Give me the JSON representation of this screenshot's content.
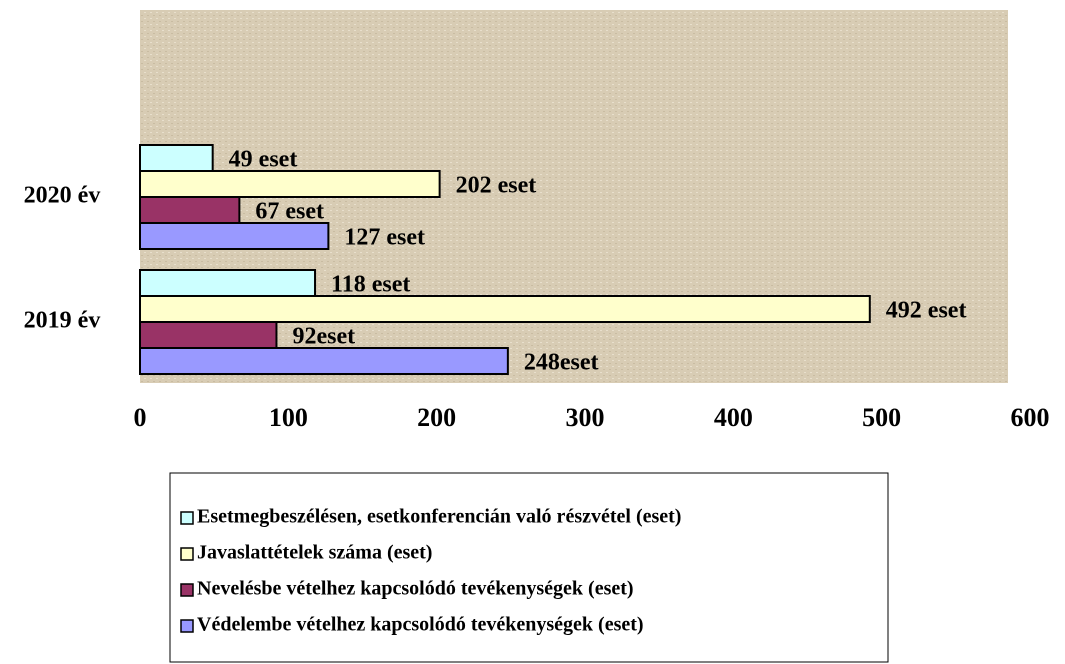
{
  "chart_data": {
    "type": "barh",
    "categories": [
      "2020 év",
      "2019 év"
    ],
    "series": [
      {
        "name": "Esetmegbeszélésen, esetkonferencián való részvétel (eset)",
        "color": "#ccffff",
        "values": [
          49,
          118
        ],
        "value_labels": [
          "49 eset",
          "118 eset"
        ]
      },
      {
        "name": "Javaslattételek száma (eset)",
        "color": "#ffffcc",
        "values": [
          202,
          492
        ],
        "value_labels": [
          "202 eset",
          "492 eset"
        ]
      },
      {
        "name": "Nevelésbe vételhez kapcsolódó tevékenységek (eset)",
        "color": "#993366",
        "values": [
          67,
          92
        ],
        "value_labels": [
          "67 eset",
          "92eset"
        ]
      },
      {
        "name": "Védelembe vételhez kapcsolódó tevékenységek (eset)",
        "color": "#9999ff",
        "values": [
          127,
          248
        ],
        "value_labels": [
          "127 eset",
          "248eset"
        ]
      }
    ],
    "xlim": [
      0,
      600
    ],
    "xticks": [
      0,
      100,
      200,
      300,
      400,
      500,
      600
    ],
    "grid": false,
    "legend": "bottom"
  }
}
